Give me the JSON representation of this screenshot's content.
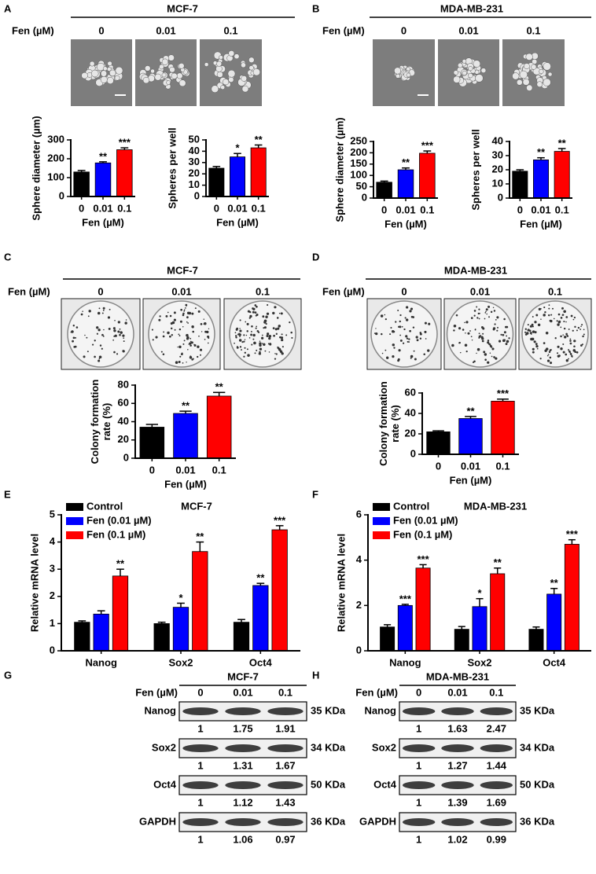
{
  "panels": {
    "A": {
      "letter": "A",
      "title": "MCF-7",
      "treatment": "Fen (µM)",
      "lanes": [
        "0",
        "0.01",
        "0.1"
      ]
    },
    "B": {
      "letter": "B",
      "title": "MDA-MB-231",
      "treatment": "Fen (µM)",
      "lanes": [
        "0",
        "0.01",
        "0.1"
      ]
    },
    "C": {
      "letter": "C",
      "title": "MCF-7",
      "treatment": "Fen (µM)",
      "lanes": [
        "0",
        "0.01",
        "0.1"
      ]
    },
    "D": {
      "letter": "D",
      "title": "MDA-MB-231",
      "treatment": "Fen (µM)",
      "lanes": [
        "0",
        "0.01",
        "0.1"
      ]
    },
    "E": {
      "letter": "E"
    },
    "F": {
      "letter": "F"
    },
    "G": {
      "letter": "G",
      "title": "MCF-7",
      "treatment": "Fen (µM)",
      "lanes": [
        "0",
        "0.01",
        "0.1"
      ],
      "rows": [
        {
          "protein": "Nanog",
          "size": "35 KDa",
          "levels": [
            1,
            1.75,
            1.91
          ]
        },
        {
          "protein": "Sox2",
          "size": "34 KDa",
          "levels": [
            1,
            1.31,
            1.67
          ]
        },
        {
          "protein": "Oct4",
          "size": "50 KDa",
          "levels": [
            1,
            1.12,
            1.43
          ]
        },
        {
          "protein": "GAPDH",
          "size": "36 KDa",
          "levels": [
            1,
            1.06,
            0.97
          ]
        }
      ]
    },
    "H": {
      "letter": "H",
      "title": "MDA-MB-231",
      "treatment": "Fen (µM)",
      "lanes": [
        "0",
        "0.01",
        "0.1"
      ],
      "rows": [
        {
          "protein": "Nanog",
          "size": "35 KDa",
          "levels": [
            1,
            1.63,
            2.47
          ]
        },
        {
          "protein": "Sox2",
          "size": "34 KDa",
          "levels": [
            1,
            1.27,
            1.44
          ]
        },
        {
          "protein": "Oct4",
          "size": "50 KDa",
          "levels": [
            1,
            1.39,
            1.69
          ]
        },
        {
          "protein": "GAPDH",
          "size": "36 KDa",
          "levels": [
            1,
            1.02,
            0.99
          ]
        }
      ]
    }
  },
  "chart_data": [
    {
      "type": "bar",
      "xlabel": "Fen (µM)",
      "ylabel": "Sphere diameter (µm)",
      "categories": [
        "0",
        "0.01",
        "0.1"
      ],
      "values": [
        130,
        178,
        248
      ],
      "errors": [
        8,
        6,
        10
      ],
      "colors": [
        "#000000",
        "#0000ff",
        "#ff0000"
      ],
      "annotations": [
        null,
        "**",
        "***"
      ],
      "ylim": [
        0,
        300
      ],
      "yticks": [
        0,
        100,
        200,
        300
      ]
    },
    {
      "type": "bar",
      "xlabel": "Fen (µM)",
      "ylabel": "Spheres per well",
      "categories": [
        "0",
        "0.01",
        "0.1"
      ],
      "values": [
        25,
        35,
        43
      ],
      "errors": [
        1.5,
        3,
        2.5
      ],
      "colors": [
        "#000000",
        "#0000ff",
        "#ff0000"
      ],
      "annotations": [
        null,
        "*",
        "**"
      ],
      "ylim": [
        0,
        50
      ],
      "yticks": [
        0,
        10,
        20,
        30,
        40,
        50
      ]
    },
    {
      "type": "bar",
      "xlabel": "Fen (µM)",
      "ylabel": "Sphere diameter (µm)",
      "categories": [
        "0",
        "0.01",
        "0.1"
      ],
      "values": [
        70,
        125,
        198
      ],
      "errors": [
        5,
        8,
        10
      ],
      "colors": [
        "#000000",
        "#0000ff",
        "#ff0000"
      ],
      "annotations": [
        null,
        "**",
        "***"
      ],
      "ylim": [
        0,
        250
      ],
      "yticks": [
        0,
        50,
        100,
        150,
        200,
        250
      ]
    },
    {
      "type": "bar",
      "xlabel": "Fen (µM)",
      "ylabel": "Spheres per well",
      "categories": [
        "0",
        "0.01",
        "0.1"
      ],
      "values": [
        19,
        27,
        33
      ],
      "errors": [
        1,
        1.5,
        2
      ],
      "colors": [
        "#000000",
        "#0000ff",
        "#ff0000"
      ],
      "annotations": [
        null,
        "**",
        "**"
      ],
      "ylim": [
        0,
        40
      ],
      "yticks": [
        0,
        10,
        20,
        30,
        40
      ]
    },
    {
      "type": "bar",
      "xlabel": "Fen (µM)",
      "ylabel": "Colony formation rate (%)",
      "categories": [
        "0",
        "0.01",
        "0.1"
      ],
      "values": [
        34,
        49,
        68
      ],
      "errors": [
        3,
        2.5,
        4
      ],
      "colors": [
        "#000000",
        "#0000ff",
        "#ff0000"
      ],
      "annotations": [
        null,
        "**",
        "**"
      ],
      "ylim": [
        0,
        80
      ],
      "yticks": [
        0,
        20,
        40,
        60,
        80
      ]
    },
    {
      "type": "bar",
      "xlabel": "Fen (µM)",
      "ylabel": "Colony formation rate (%)",
      "categories": [
        "0",
        "0.01",
        "0.1"
      ],
      "values": [
        22,
        35,
        52
      ],
      "errors": [
        1,
        2,
        2
      ],
      "colors": [
        "#000000",
        "#0000ff",
        "#ff0000"
      ],
      "annotations": [
        null,
        "**",
        "***"
      ],
      "ylim": [
        0,
        60
      ],
      "yticks": [
        0,
        20,
        40,
        60
      ]
    },
    {
      "type": "grouped_bar",
      "title": "MCF-7",
      "ylabel": "Relative mRNA level",
      "categories": [
        "Nanog",
        "Sox2",
        "Oct4"
      ],
      "legend": "upper left",
      "ylim": [
        0,
        5
      ],
      "yticks": [
        0,
        1,
        2,
        3,
        4,
        5
      ],
      "series": [
        {
          "name": "Control",
          "color": "#000000",
          "values": [
            1.05,
            1.0,
            1.05
          ],
          "errors": [
            0.05,
            0.05,
            0.1
          ],
          "annotations": [
            null,
            null,
            null
          ]
        },
        {
          "name": "Fen (0.01 µM)",
          "color": "#0000ff",
          "values": [
            1.35,
            1.6,
            2.4
          ],
          "errors": [
            0.12,
            0.15,
            0.08
          ],
          "annotations": [
            null,
            "*",
            "**"
          ]
        },
        {
          "name": "Fen (0.1 µM)",
          "color": "#ff0000",
          "values": [
            2.75,
            3.65,
            4.45
          ],
          "errors": [
            0.25,
            0.35,
            0.15
          ],
          "annotations": [
            "**",
            "**",
            "***"
          ]
        }
      ]
    },
    {
      "type": "grouped_bar",
      "title": "MDA-MB-231",
      "ylabel": "Relative mRNA level",
      "categories": [
        "Nanog",
        "Sox2",
        "Oct4"
      ],
      "legend": "upper left",
      "ylim": [
        0,
        6
      ],
      "yticks": [
        0,
        2,
        4,
        6
      ],
      "series": [
        {
          "name": "Control",
          "color": "#000000",
          "values": [
            1.05,
            0.95,
            0.95
          ],
          "errors": [
            0.1,
            0.12,
            0.1
          ],
          "annotations": [
            null,
            null,
            null
          ]
        },
        {
          "name": "Fen (0.01 µM)",
          "color": "#0000ff",
          "values": [
            2.0,
            1.95,
            2.5
          ],
          "errors": [
            0.05,
            0.35,
            0.25
          ],
          "annotations": [
            "***",
            "*",
            "**"
          ]
        },
        {
          "name": "Fen (0.1 µM)",
          "color": "#ff0000",
          "values": [
            3.65,
            3.4,
            4.7
          ],
          "errors": [
            0.15,
            0.25,
            0.2
          ],
          "annotations": [
            "***",
            "**",
            "***"
          ]
        }
      ]
    }
  ]
}
